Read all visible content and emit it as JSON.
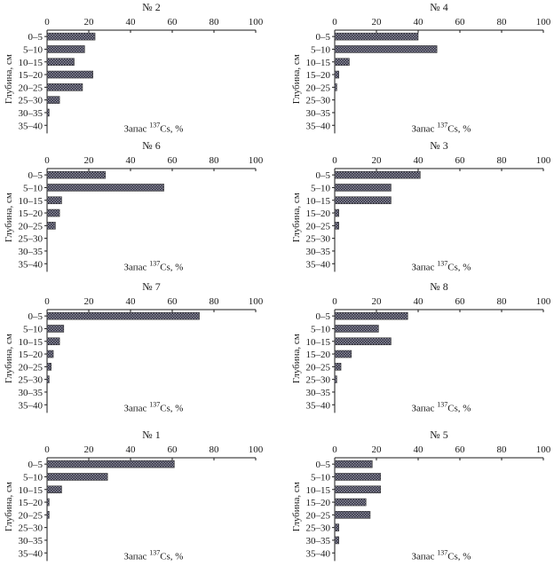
{
  "chart_data": [
    {
      "type": "bar",
      "orientation": "horizontal",
      "title": "№ 2",
      "categories": [
        "0–5",
        "5–10",
        "10–15",
        "15–20",
        "20–25",
        "25–30",
        "30–35",
        "35–40"
      ],
      "values": [
        23,
        18,
        13,
        22,
        17,
        6,
        1,
        0
      ],
      "xlim": [
        0,
        100
      ],
      "xticks": [
        "0",
        "20",
        "40",
        "60",
        "80",
        "100"
      ],
      "xlabel_main": "Запас ",
      "xlabel_sup": "137",
      "xlabel_rest": "Cs, %",
      "ylabel": "Глубина, см"
    },
    {
      "type": "bar",
      "orientation": "horizontal",
      "title": "№ 4",
      "categories": [
        "0–5",
        "5–10",
        "10–15",
        "15–20",
        "20–25",
        "25–30",
        "30–35",
        "35–40"
      ],
      "values": [
        40,
        49,
        7,
        2,
        1,
        0,
        0,
        0
      ],
      "xlim": [
        0,
        100
      ],
      "xticks": [
        "0",
        "20",
        "40",
        "60",
        "80",
        "100"
      ],
      "xlabel_main": "Запас ",
      "xlabel_sup": "137",
      "xlabel_rest": "Cs, %",
      "ylabel": "Глубина, см"
    },
    {
      "type": "bar",
      "orientation": "horizontal",
      "title": "№ 6",
      "categories": [
        "0–5",
        "5–10",
        "10–15",
        "15–20",
        "20–25",
        "25–30",
        "30–35",
        "35–40"
      ],
      "values": [
        28,
        56,
        7,
        6,
        4,
        0,
        0,
        0
      ],
      "xlim": [
        0,
        100
      ],
      "xticks": [
        "0",
        "20",
        "40",
        "60",
        "80",
        "100"
      ],
      "xlabel_main": "Запас ",
      "xlabel_sup": "137",
      "xlabel_rest": "Cs, %",
      "ylabel": "Глубина, см"
    },
    {
      "type": "bar",
      "orientation": "horizontal",
      "title": "№ 3",
      "categories": [
        "0–5",
        "5–10",
        "10–15",
        "15–20",
        "20–25",
        "25–30",
        "30–35",
        "35–40"
      ],
      "values": [
        41,
        27,
        27,
        2,
        2,
        0,
        0,
        0
      ],
      "xlim": [
        0,
        100
      ],
      "xticks": [
        "0",
        "20",
        "40",
        "60",
        "80",
        "100"
      ],
      "xlabel_main": "Запас ",
      "xlabel_sup": "137",
      "xlabel_rest": "Cs, %",
      "ylabel": "Глубина, см"
    },
    {
      "type": "bar",
      "orientation": "horizontal",
      "title": "№ 7",
      "categories": [
        "0–5",
        "5–10",
        "10–15",
        "15–20",
        "20–25",
        "25–30",
        "30–35",
        "35–40"
      ],
      "values": [
        73,
        8,
        6,
        3,
        2,
        1,
        0,
        0
      ],
      "xlim": [
        0,
        100
      ],
      "xticks": [
        "0",
        "20",
        "40",
        "60",
        "80",
        "100"
      ],
      "xlabel_main": "Запас ",
      "xlabel_sup": "137",
      "xlabel_rest": "Cs, %",
      "ylabel": "Глубина, см"
    },
    {
      "type": "bar",
      "orientation": "horizontal",
      "title": "№ 8",
      "categories": [
        "0–5",
        "5–10",
        "10–15",
        "15–20",
        "20–25",
        "25–30",
        "30–35",
        "35–40"
      ],
      "values": [
        35,
        21,
        27,
        8,
        3,
        1,
        0,
        0
      ],
      "xlim": [
        0,
        100
      ],
      "xticks": [
        "0",
        "20",
        "40",
        "60",
        "80",
        "100"
      ],
      "xlabel_main": "Запас ",
      "xlabel_sup": "137",
      "xlabel_rest": "Cs, %",
      "ylabel": "Глубина, см"
    },
    {
      "type": "bar",
      "orientation": "horizontal",
      "title": "№ 1",
      "categories": [
        "0–5",
        "5–10",
        "10–15",
        "15–20",
        "20–25",
        "25–30",
        "30–35",
        "35–40"
      ],
      "values": [
        61,
        29,
        7,
        1,
        1,
        0,
        0,
        0
      ],
      "xlim": [
        0,
        100
      ],
      "xticks": [
        "0",
        "20",
        "40",
        "60",
        "80",
        "100"
      ],
      "xlabel_main": "Запас ",
      "xlabel_sup": "137",
      "xlabel_rest": "Cs, %",
      "ylabel": "Глубина, см"
    },
    {
      "type": "bar",
      "orientation": "horizontal",
      "title": "№ 5",
      "categories": [
        "0–5",
        "5–10",
        "10–15",
        "15–20",
        "20–25",
        "25–30",
        "30–35",
        "35–40"
      ],
      "values": [
        18,
        22,
        22,
        15,
        17,
        2,
        2,
        0
      ],
      "xlim": [
        0,
        100
      ],
      "xticks": [
        "0",
        "20",
        "40",
        "60",
        "80",
        "100"
      ],
      "xlabel_main": "Запас ",
      "xlabel_sup": "137",
      "xlabel_rest": "Cs, %",
      "ylabel": "Глубина, см"
    }
  ]
}
